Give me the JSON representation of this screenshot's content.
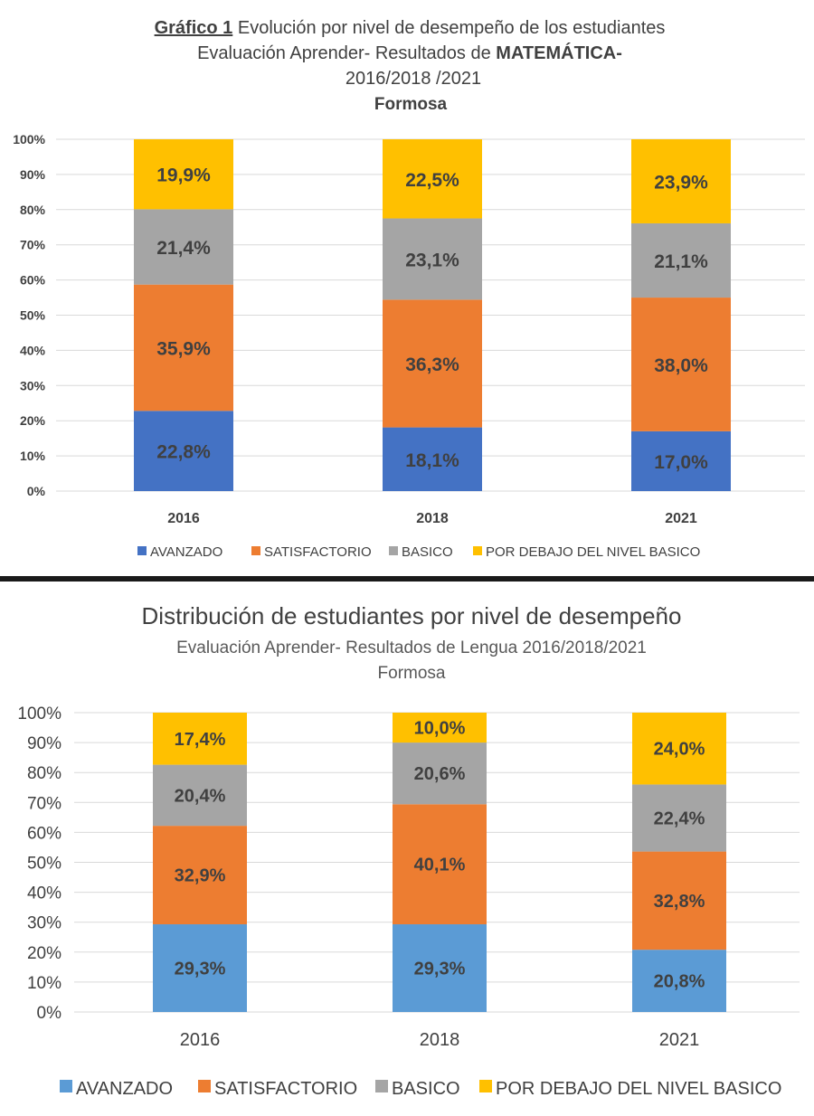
{
  "chart_data": [
    {
      "type": "bar",
      "stacked": true,
      "title_prefix": "Gráfico 1",
      "title_line1": " Evolución  por nivel de desempeño de los estudiantes",
      "title_line2_a": "Evaluación Aprender- Resultados de ",
      "title_line2_b": "MATEMÁTICA-",
      "title_line3": "2016/2018 /2021",
      "title_line4": "Formosa",
      "categories": [
        "2016",
        "2018",
        "2021"
      ],
      "yticks": [
        "0%",
        "10%",
        "20%",
        "30%",
        "40%",
        "50%",
        "60%",
        "70%",
        "80%",
        "90%",
        "100%"
      ],
      "ylim": [
        0,
        100
      ],
      "grid": true,
      "legend_position": "bottom",
      "series": [
        {
          "name": "AVANZADO",
          "color": "#4472C4",
          "values": [
            22.8,
            18.1,
            17.0
          ],
          "labels": [
            "22,8%",
            "18,1%",
            "17,0%"
          ]
        },
        {
          "name": "SATISFACTORIO",
          "color": "#ED7D31",
          "values": [
            35.9,
            36.3,
            38.0
          ],
          "labels": [
            "35,9%",
            "36,3%",
            "38,0%"
          ]
        },
        {
          "name": "BASICO",
          "color": "#A5A5A5",
          "values": [
            21.4,
            23.1,
            21.1
          ],
          "labels": [
            "21,4%",
            "23,1%",
            "21,1%"
          ]
        },
        {
          "name": "POR DEBAJO DEL NIVEL BASICO",
          "color": "#FFC000",
          "values": [
            19.9,
            22.5,
            23.9
          ],
          "labels": [
            "19,9%",
            "22,5%",
            "23,9%"
          ]
        }
      ]
    },
    {
      "type": "bar",
      "stacked": true,
      "title": "Distribución de estudiantes por nivel de desempeño",
      "subtitle_line1": "Evaluación Aprender- Resultados de Lengua 2016/2018/2021",
      "subtitle_line2": "Formosa",
      "categories": [
        "2016",
        "2018",
        "2021"
      ],
      "yticks": [
        "0%",
        "10%",
        "20%",
        "30%",
        "40%",
        "50%",
        "60%",
        "70%",
        "80%",
        "90%",
        "100%"
      ],
      "ylim": [
        0,
        100
      ],
      "grid": true,
      "legend_position": "bottom",
      "series": [
        {
          "name": "AVANZADO",
          "color": "#5B9BD5",
          "values": [
            29.3,
            29.3,
            20.8
          ],
          "labels": [
            "29,3%",
            "29,3%",
            "20,8%"
          ]
        },
        {
          "name": "SATISFACTORIO",
          "color": "#ED7D31",
          "values": [
            32.9,
            40.1,
            32.8
          ],
          "labels": [
            "32,9%",
            "40,1%",
            "32,8%"
          ]
        },
        {
          "name": "BASICO",
          "color": "#A5A5A5",
          "values": [
            20.4,
            20.6,
            22.4
          ],
          "labels": [
            "20,4%",
            "20,6%",
            "22,4%"
          ]
        },
        {
          "name": "POR DEBAJO DEL NIVEL BASICO",
          "color": "#FFC000",
          "values": [
            17.4,
            10.0,
            24.0
          ],
          "labels": [
            "17,4%",
            "10,0%",
            "24,0%"
          ]
        }
      ]
    }
  ]
}
